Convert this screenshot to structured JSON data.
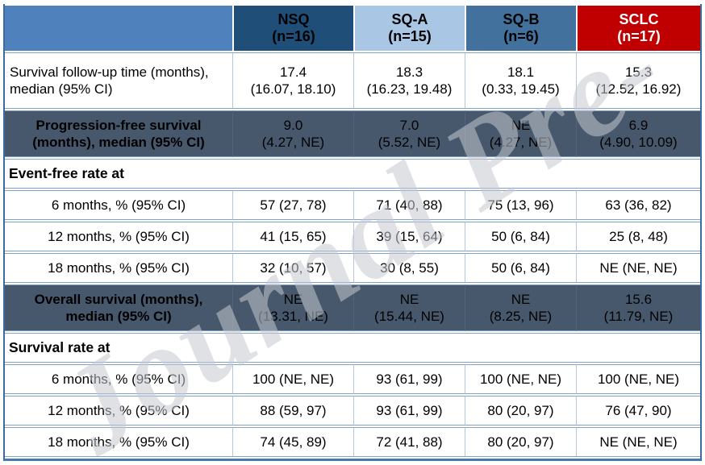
{
  "watermark": {
    "text": "Journal Pre-"
  },
  "colors": {
    "header_label_bg": "#4f81bd",
    "nsq_bg": "#1f4e79",
    "sqa_bg": "#a9c6e5",
    "sqb_bg": "#41719c",
    "sclc_bg": "#c00000",
    "sclc_text": "#ffffff",
    "dark_row_bg": "#47586c",
    "grid_line": "#7fa1ca",
    "outer_border": "#3d6ba0"
  },
  "table": {
    "columns": [
      {
        "label": "",
        "sub": ""
      },
      {
        "label": "NSQ",
        "sub": "(n=16)"
      },
      {
        "label": "SQ-A",
        "sub": "(n=15)"
      },
      {
        "label": "SQ-B",
        "sub": "(n=6)"
      },
      {
        "label": "SCLC",
        "sub": "(n=17)"
      }
    ],
    "rows": [
      {
        "name": "row-survival-followup-time",
        "type": "data",
        "style": "white",
        "tall": true,
        "label_align": "left",
        "label_bold": false,
        "label_lines": [
          "Survival follow-up time (months),",
          "median (95% CI)"
        ],
        "values": [
          [
            "17.4",
            "(16.07, 18.10)"
          ],
          [
            "18.3",
            "(16.23, 19.48)"
          ],
          [
            "18.1",
            "(0.33, 19.45)"
          ],
          [
            "15.3",
            "(12.52, 16.92)"
          ]
        ]
      },
      {
        "name": "row-progression-free-survival",
        "type": "data",
        "style": "dark",
        "label_align": "center",
        "label_bold": true,
        "label_lines": [
          "Progression-free survival",
          "(months), median (95% CI)"
        ],
        "values": [
          [
            "9.0",
            "(4.27, NE)"
          ],
          [
            "7.0",
            "(5.52, NE)"
          ],
          [
            "NE",
            "(4.27, NE)"
          ],
          [
            "6.9",
            "(4.90, 10.09)"
          ]
        ]
      },
      {
        "name": "section-event-free-rate",
        "type": "section",
        "label_lines": [
          "Event-free rate at"
        ]
      },
      {
        "name": "row-event-free-6-months",
        "type": "data",
        "style": "white",
        "label_align": "center",
        "label_bold": false,
        "label_lines": [
          "6 months, % (95% CI)"
        ],
        "values": [
          [
            "57 (27, 78)"
          ],
          [
            "71 (40, 88)"
          ],
          [
            "75 (13, 96)"
          ],
          [
            "63 (36, 82)"
          ]
        ]
      },
      {
        "name": "row-event-free-12-months",
        "type": "data",
        "style": "white",
        "label_align": "center",
        "label_bold": false,
        "label_lines": [
          "12 months, % (95% CI)"
        ],
        "values": [
          [
            "41 (15, 65)"
          ],
          [
            "39 (15, 64)"
          ],
          [
            "50 (6, 84)"
          ],
          [
            "25 (8, 48)"
          ]
        ]
      },
      {
        "name": "row-event-free-18-months",
        "type": "data",
        "style": "white",
        "label_align": "center",
        "label_bold": false,
        "label_lines": [
          "18 months, % (95% CI)"
        ],
        "values": [
          [
            "32 (10, 57)"
          ],
          [
            "30 (8, 55)"
          ],
          [
            "50 (6, 84)"
          ],
          [
            "NE (NE, NE)"
          ]
        ]
      },
      {
        "name": "row-overall-survival",
        "type": "data",
        "style": "dark",
        "label_align": "center",
        "label_bold": true,
        "label_lines": [
          "Overall survival (months),",
          "median (95% CI)"
        ],
        "values": [
          [
            "NE",
            "(13.31, NE)"
          ],
          [
            "NE",
            "(15.44, NE)"
          ],
          [
            "NE",
            "(8.25, NE)"
          ],
          [
            "15.6",
            "(11.79, NE)"
          ]
        ]
      },
      {
        "name": "section-survival-rate",
        "type": "section",
        "label_lines": [
          "Survival rate at"
        ]
      },
      {
        "name": "row-survival-rate-6-months",
        "type": "data",
        "style": "white",
        "label_align": "center",
        "label_bold": false,
        "label_lines": [
          "6 months, % (95% CI)"
        ],
        "values": [
          [
            "100 (NE, NE)"
          ],
          [
            "93 (61, 99)"
          ],
          [
            "100 (NE, NE)"
          ],
          [
            "100 (NE, NE)"
          ]
        ]
      },
      {
        "name": "row-survival-rate-12-months",
        "type": "data",
        "style": "white",
        "label_align": "center",
        "label_bold": false,
        "label_lines": [
          "12 months, % (95% CI)"
        ],
        "values": [
          [
            "88 (59, 97)"
          ],
          [
            "93 (61, 99)"
          ],
          [
            "80 (20, 97)"
          ],
          [
            "76 (47, 90)"
          ]
        ]
      },
      {
        "name": "row-survival-rate-18-months",
        "type": "data",
        "style": "white",
        "label_align": "center",
        "label_bold": false,
        "label_lines": [
          "18 months, % (95% CI)"
        ],
        "values": [
          [
            "74 (45, 89)"
          ],
          [
            "72 (41, 88)"
          ],
          [
            "80 (20, 97)"
          ],
          [
            "NE (NE, NE)"
          ]
        ]
      }
    ]
  }
}
